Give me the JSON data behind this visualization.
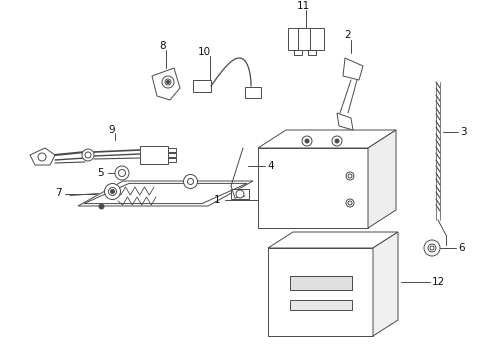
{
  "bg_color": "#ffffff",
  "line_color": "#4a4a4a",
  "text_color": "#111111",
  "fig_width": 4.89,
  "fig_height": 3.6,
  "dpi": 100,
  "lw": 0.7,
  "label_fs": 7.5
}
